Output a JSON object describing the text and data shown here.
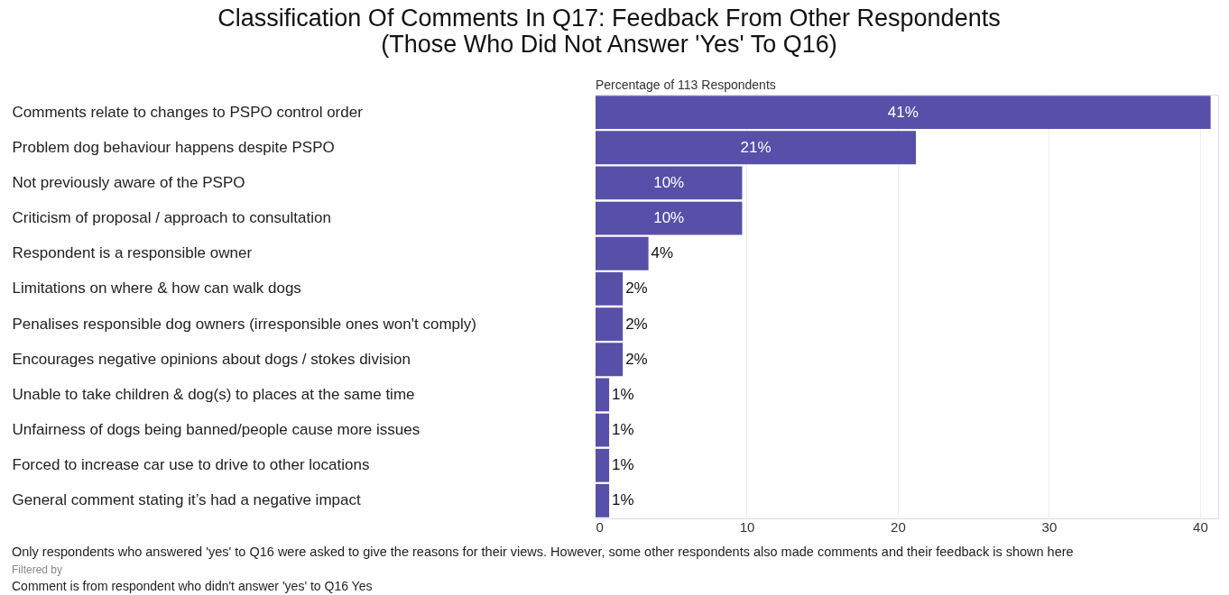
{
  "chart_data": {
    "type": "bar",
    "orientation": "horizontal",
    "title": "Classification Of Comments In Q17: Feedback From Other Respondents\n(Those Who Did Not Answer 'Yes' To Q16)",
    "xlabel": "Percentage of 113 Respondents",
    "categories": [
      "Comments relate to changes to PSPO control order",
      "Problem dog behaviour happens despite PSPO",
      "Not previously aware of the PSPO",
      "Criticism of proposal / approach to consultation",
      "Respondent is a responsible owner",
      "Limitations on where & how can walk dogs",
      "Penalises responsible dog owners (irresponsible ones won't comply)",
      "Encourages negative opinions about dogs / stokes division",
      "Unable to take children & dog(s) to places at the same time",
      "Unfairness of dogs being banned/people cause more issues",
      "Forced to increase car use to drive to other locations",
      "General comment stating it’s had a negative impact"
    ],
    "values": [
      40.7,
      21.2,
      9.7,
      9.7,
      3.5,
      1.8,
      1.8,
      1.8,
      0.9,
      0.9,
      0.9,
      0.9
    ],
    "value_labels": [
      "41%",
      "21%",
      "10%",
      "10%",
      "4%",
      "2%",
      "2%",
      "2%",
      "1%",
      "1%",
      "1%",
      "1%"
    ],
    "color": "#574fa8",
    "xlim": [
      0,
      41.2
    ],
    "xticks": [
      0,
      10,
      20,
      30,
      40
    ],
    "grid": "x",
    "annotations": [
      "Only respondents who answered 'yes' to Q16 were asked to give the reasons for their views. However, some other respondents also made comments and their feedback is shown here",
      "Filtered by",
      "Comment is from respondent who didn't answer 'yes' to Q16 Yes"
    ]
  }
}
